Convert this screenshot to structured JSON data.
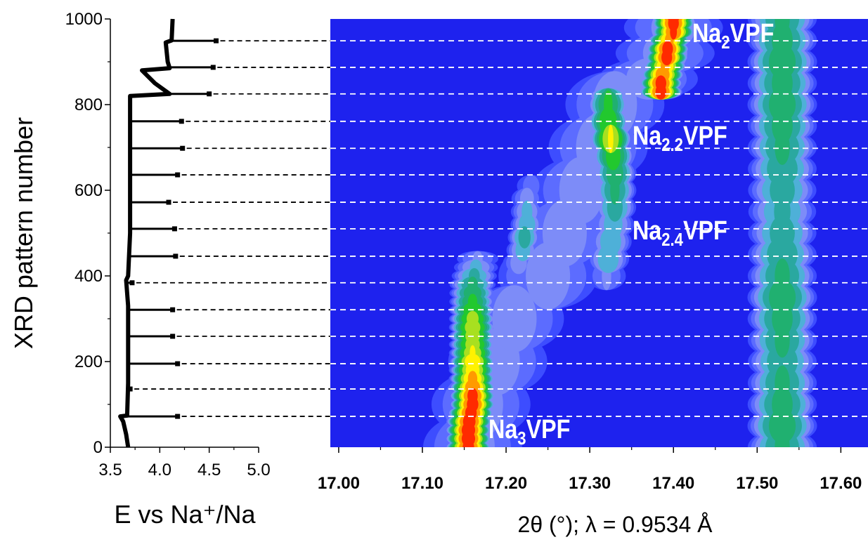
{
  "chart_data": [
    {
      "type": "line",
      "x_label": "E vs Na⁺/Na",
      "y_label": "XRD pattern number",
      "xlim": [
        3.5,
        5.0
      ],
      "ylim": [
        0,
        1000
      ],
      "xticks": [
        3.5,
        {
          "value": 4,
          "label": "4.0"
        },
        4.5,
        {
          "value": 5,
          "label": "5.0"
        }
      ],
      "xminor": [
        3.75,
        4.25,
        4.75
      ],
      "yticks": [
        0,
        200,
        400,
        600,
        800,
        1000
      ],
      "yminor": [
        100,
        300,
        500,
        700,
        900
      ],
      "series": [
        {
          "color": "#000000",
          "x": [
            3.68,
            3.66,
            3.63,
            3.6,
            3.67,
            3.68,
            3.68,
            3.68,
            3.66,
            3.68,
            3.7,
            3.7,
            3.7,
            3.7,
            3.7,
            4.1,
            3.95,
            3.82,
            4.1,
            4.08,
            4.06,
            4.12,
            4.13
          ],
          "y": [
            0,
            30,
            60,
            72,
            74,
            150,
            260,
            330,
            390,
            400,
            500,
            600,
            700,
            780,
            820,
            825,
            850,
            880,
            885,
            900,
            945,
            950,
            1000
          ]
        }
      ],
      "relaxation": {
        "color": "#000000",
        "x": [
          4.57,
          4.54,
          4.5,
          4.22,
          4.23,
          4.18,
          4.09,
          4.15,
          4.16,
          3.72,
          4.13,
          4.13,
          4.18,
          3.7,
          4.18
        ],
        "y": [
          949,
          887,
          825,
          761,
          698,
          636,
          572,
          510,
          446,
          384,
          321,
          259,
          195,
          136,
          72
        ]
      }
    },
    {
      "type": "heatmap",
      "x_label": "2θ (°); λ = 0.9534 Å",
      "xlim": [
        16.99,
        17.64
      ],
      "ylim": [
        0,
        1000
      ],
      "xticks": [
        {
          "value": 17,
          "label": "17.00"
        },
        {
          "value": 17.1,
          "label": "17.10"
        },
        {
          "value": 17.2,
          "label": "17.20"
        },
        {
          "value": 17.3,
          "label": "17.30"
        },
        {
          "value": 17.4,
          "label": "17.40"
        },
        {
          "value": 17.5,
          "label": "17.50"
        },
        {
          "value": 17.6,
          "label": "17.60"
        }
      ],
      "xminor": [
        17.05,
        17.15,
        17.25,
        17.35,
        17.45,
        17.55
      ],
      "background": "#1e22ee",
      "line_color": "#ffffff",
      "colorscale": [
        {
          "level": 0.08,
          "color": "#3d4dff"
        },
        {
          "level": 0.16,
          "color": "#5c6cff"
        },
        {
          "level": 0.24,
          "color": "#7d8cf8"
        },
        {
          "level": 0.32,
          "color": "#4eb0d8"
        },
        {
          "level": 0.4,
          "color": "#2aa8a0"
        },
        {
          "level": 0.48,
          "color": "#20b070"
        },
        {
          "level": 0.56,
          "color": "#22c82e"
        },
        {
          "level": 0.66,
          "color": "#a8e020"
        },
        {
          "level": 0.74,
          "color": "#fff200"
        },
        {
          "level": 0.82,
          "color": "#ff9a00"
        },
        {
          "level": 0.9,
          "color": "#ff2a00"
        }
      ],
      "tracks": [
        {
          "width": 0.07,
          "pattern": [
            0,
            100,
            200,
            300,
            400,
            500,
            600,
            700,
            800,
            860,
            920,
            980
          ],
          "two_theta": [
            17.16,
            17.17,
            17.19,
            17.21,
            17.25,
            17.27,
            17.29,
            17.31,
            17.33,
            17.37,
            17.39,
            17.4
          ],
          "intensity": [
            0.28,
            0.28,
            0.28,
            0.28,
            0.28,
            0.28,
            0.28,
            0.28,
            0.28,
            0.28,
            0.28,
            0.28
          ]
        },
        {
          "width": 0.03,
          "pattern": [
            0,
            20,
            40,
            60,
            80,
            100,
            120,
            140,
            160,
            180,
            200,
            220,
            240,
            260,
            280,
            300,
            320,
            340,
            360,
            380,
            400,
            420,
            440
          ],
          "two_theta": [
            17.155,
            17.155,
            17.155,
            17.156,
            17.158,
            17.16,
            17.16,
            17.16,
            17.16,
            17.16,
            17.16,
            17.16,
            17.16,
            17.16,
            17.16,
            17.16,
            17.16,
            17.16,
            17.16,
            17.16,
            17.162,
            17.164,
            17.166
          ],
          "intensity": [
            0.95,
            0.97,
            0.97,
            0.96,
            0.95,
            0.95,
            0.94,
            0.9,
            0.85,
            0.8,
            0.82,
            0.75,
            0.72,
            0.72,
            0.73,
            0.7,
            0.65,
            0.58,
            0.55,
            0.5,
            0.42,
            0.34,
            0.25
          ]
        },
        {
          "width": 0.022,
          "pattern": [
            400,
            430,
            460,
            490,
            520,
            550,
            580,
            610
          ],
          "two_theta": [
            17.21,
            17.215,
            17.22,
            17.222,
            17.225,
            17.225,
            17.225,
            17.23
          ],
          "intensity": [
            0.2,
            0.3,
            0.38,
            0.45,
            0.4,
            0.35,
            0.28,
            0.2
          ]
        },
        {
          "width": 0.028,
          "pattern": [
            400,
            440,
            480,
            520,
            560,
            600,
            640,
            680,
            720,
            760,
            800,
            820
          ],
          "two_theta": [
            17.32,
            17.322,
            17.325,
            17.328,
            17.33,
            17.33,
            17.33,
            17.328,
            17.325,
            17.322,
            17.322,
            17.322
          ],
          "intensity": [
            0.25,
            0.4,
            0.4,
            0.38,
            0.45,
            0.5,
            0.55,
            0.62,
            0.75,
            0.65,
            0.58,
            0.5
          ]
        },
        {
          "width": 0.028,
          "pattern": [
            830,
            850,
            870,
            890,
            910,
            930,
            950,
            970,
            990,
            1000
          ],
          "two_theta": [
            17.385,
            17.385,
            17.387,
            17.39,
            17.392,
            17.393,
            17.395,
            17.4,
            17.4,
            17.4
          ],
          "intensity": [
            0.95,
            0.95,
            0.9,
            0.85,
            0.95,
            0.95,
            0.85,
            0.92,
            0.95,
            0.95
          ]
        },
        {
          "width": 0.045,
          "pattern": [
            0,
            50,
            100,
            150,
            200,
            250,
            300,
            350,
            400,
            450,
            500,
            550,
            600,
            650,
            700,
            750,
            800,
            850,
            900,
            950,
            1000
          ],
          "two_theta": [
            17.53,
            17.53,
            17.53,
            17.53,
            17.53,
            17.53,
            17.53,
            17.53,
            17.53,
            17.53,
            17.53,
            17.53,
            17.53,
            17.53,
            17.53,
            17.53,
            17.53,
            17.53,
            17.53,
            17.53,
            17.53
          ],
          "intensity": [
            0.5,
            0.55,
            0.52,
            0.5,
            0.48,
            0.5,
            0.52,
            0.55,
            0.5,
            0.48,
            0.45,
            0.42,
            0.45,
            0.48,
            0.5,
            0.52,
            0.55,
            0.52,
            0.55,
            0.52,
            0.5
          ]
        }
      ],
      "annotations": [
        {
          "text": "Na",
          "sub": "2",
          "rest": "VPF"
        },
        {
          "text": "Na",
          "sub": "2.2",
          "rest": "VPF"
        },
        {
          "text": "Na",
          "sub": "2.4",
          "rest": "VPF"
        },
        {
          "text": "Na",
          "sub": "3",
          "rest": "VPF"
        }
      ]
    }
  ]
}
